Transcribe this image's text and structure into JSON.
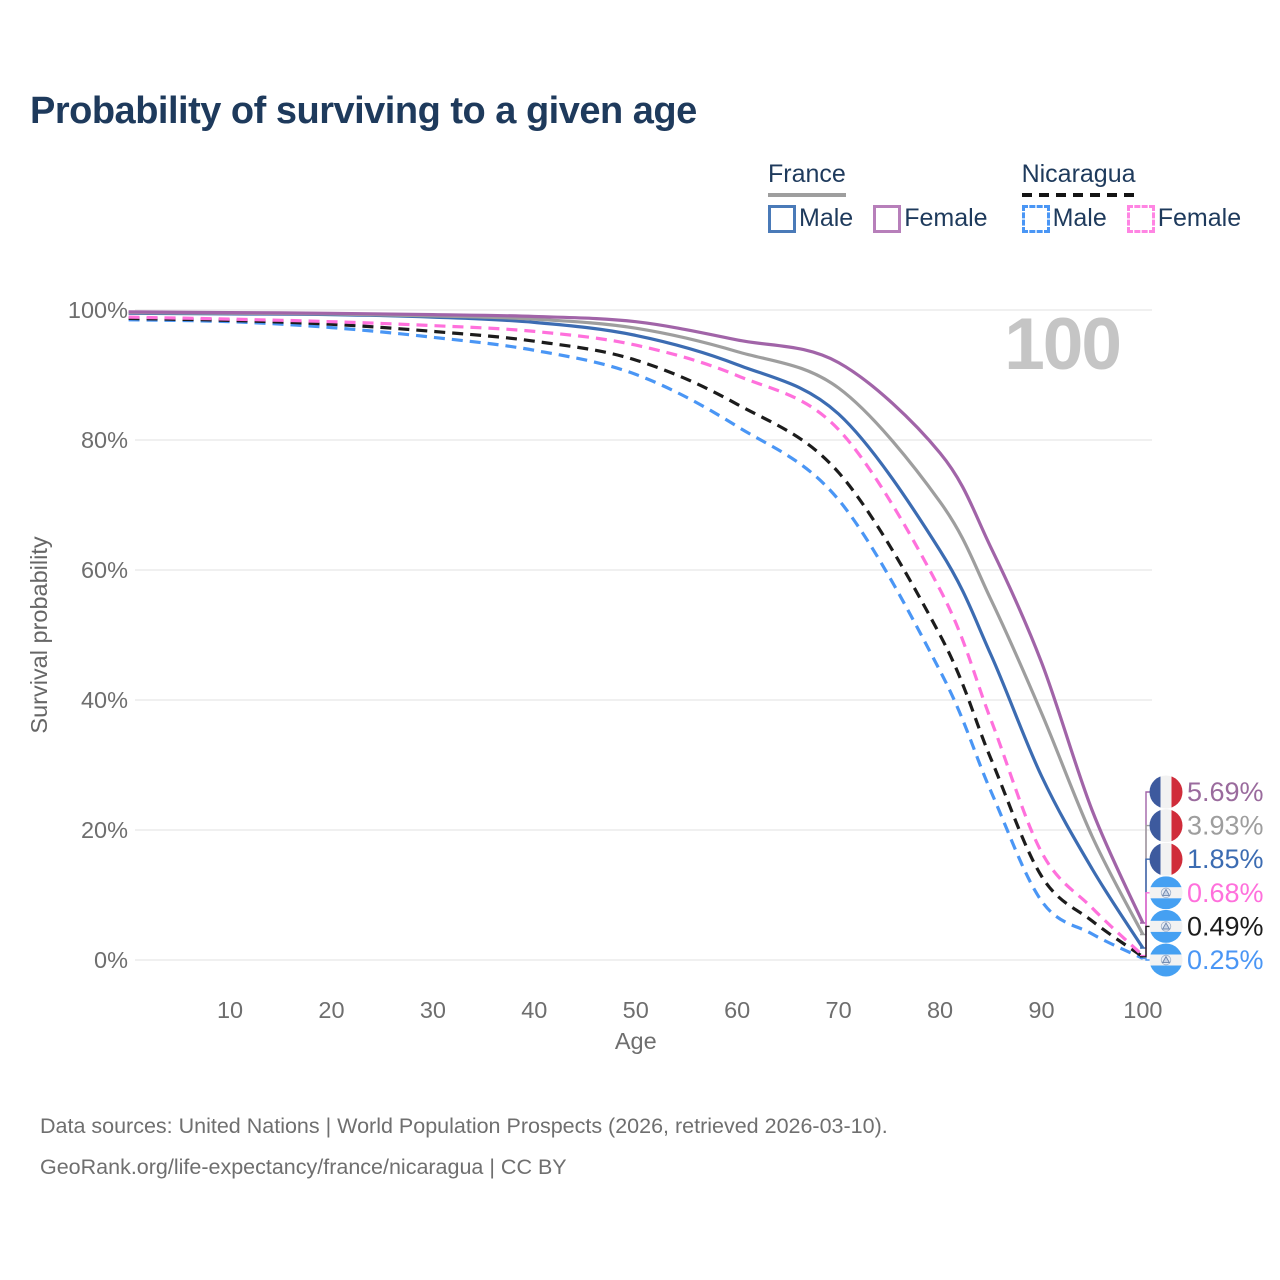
{
  "header": {
    "title": "Probability of surviving to a given age"
  },
  "legend": {
    "groups": [
      {
        "name": "France",
        "underline_style": "solid",
        "underline_color": "#9e9e9e",
        "items": [
          {
            "label": "Male",
            "color": "#4a7ab8",
            "dashed": false
          },
          {
            "label": "Female",
            "color": "#b77fba",
            "dashed": false
          }
        ]
      },
      {
        "name": "Nicaragua",
        "underline_style": "dashed",
        "underline_color": "#141414",
        "items": [
          {
            "label": "Male",
            "color": "#4a96f5",
            "dashed": true
          },
          {
            "label": "Female",
            "color": "#ff85e3",
            "dashed": true
          }
        ]
      }
    ]
  },
  "chart_data": {
    "type": "line",
    "title": "Probability of surviving to a given age",
    "xlabel": "Age",
    "ylabel": "Survival probability",
    "xlim": [
      0,
      100
    ],
    "ylim": [
      0,
      100
    ],
    "x_ticks": [
      10,
      20,
      30,
      40,
      50,
      60,
      70,
      80,
      90,
      100
    ],
    "y_ticks": [
      0,
      20,
      40,
      60,
      80,
      100
    ],
    "y_tick_suffix": "%",
    "grid": "horizontal",
    "legend_position": "top-right",
    "watermark": "100",
    "ages": [
      0,
      10,
      20,
      30,
      40,
      50,
      60,
      70,
      80,
      85,
      90,
      95,
      100
    ],
    "series": [
      {
        "name": "France Female",
        "country": "France",
        "sex": "Female",
        "flag": "france",
        "style": "solid",
        "color": "#a164a8",
        "label_color": "#9a6b9d",
        "end_label": "5.69%",
        "values": [
          99.7,
          99.6,
          99.5,
          99.3,
          99.0,
          98.2,
          95.4,
          91.9,
          78.0,
          63.5,
          45.8,
          23.0,
          5.69
        ]
      },
      {
        "name": "France Both sexes",
        "country": "France",
        "sex": "Both",
        "flag": "france",
        "style": "solid",
        "color": "#9e9e9e",
        "label_color": "#9e9e9e",
        "end_label": "3.93%",
        "values": [
          99.6,
          99.5,
          99.4,
          99.1,
          98.6,
          97.2,
          93.6,
          88.0,
          70.5,
          55.5,
          38.0,
          19.0,
          3.93
        ]
      },
      {
        "name": "France Male",
        "country": "France",
        "sex": "Male",
        "flag": "france",
        "style": "solid",
        "color": "#3c6cb2",
        "label_color": "#3c6cb2",
        "end_label": "1.85%",
        "values": [
          99.5,
          99.4,
          99.3,
          98.9,
          98.1,
          96.1,
          91.6,
          84.0,
          63.0,
          47.0,
          28.3,
          14.0,
          1.85
        ]
      },
      {
        "name": "Nicaragua Female",
        "country": "Nicaragua",
        "sex": "Female",
        "flag": "nicaragua",
        "style": "dashed",
        "color": "#ff70dc",
        "label_color": "#ff70dc",
        "end_label": "0.68%",
        "values": [
          98.9,
          98.6,
          98.2,
          97.6,
          96.7,
          94.6,
          89.9,
          81.6,
          57.0,
          37.0,
          16.6,
          8.0,
          0.68
        ]
      },
      {
        "name": "Nicaragua Both sexes",
        "country": "Nicaragua",
        "sex": "Both",
        "flag": "nicaragua",
        "style": "dashed",
        "color": "#1c1c1c",
        "label_color": "#1c1c1c",
        "end_label": "0.49%",
        "values": [
          98.7,
          98.4,
          97.8,
          96.7,
          95.2,
          92.3,
          85.5,
          75.0,
          50.0,
          31.0,
          12.9,
          6.0,
          0.49
        ]
      },
      {
        "name": "Nicaragua Male",
        "country": "Nicaragua",
        "sex": "Male",
        "flag": "nicaragua",
        "style": "dashed",
        "color": "#4a96f5",
        "label_color": "#4a96f5",
        "end_label": "0.25%",
        "values": [
          98.5,
          98.2,
          97.3,
          95.8,
          93.8,
          90.1,
          82.1,
          70.8,
          44.5,
          26.0,
          9.1,
          4.0,
          0.25
        ]
      }
    ]
  },
  "footer": {
    "line1": "Data sources: United Nations | World Population Prospects (2026, retrieved 2026-03-10).",
    "line2": "GeoRank.org/life-expectancy/france/nicaragua | CC BY"
  }
}
